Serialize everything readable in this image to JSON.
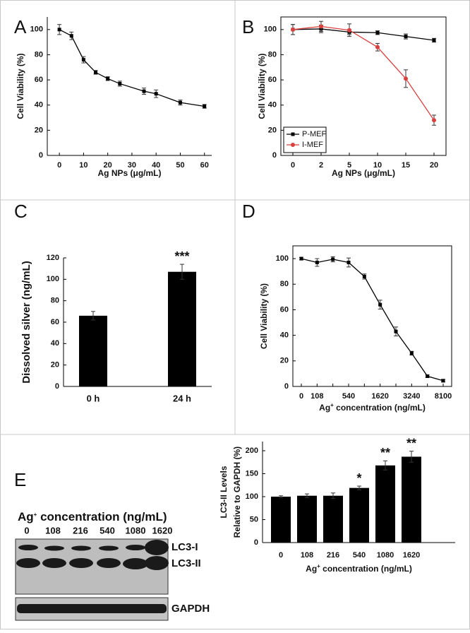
{
  "chart_data": [
    {
      "panel": "A",
      "type": "line",
      "ylabel": "Cell Viability (%)",
      "xlabel": "Ag NPs (μg/mL)",
      "x": [
        0,
        5,
        10,
        15,
        20,
        25,
        35,
        40,
        50,
        60
      ],
      "series": [
        {
          "color": "#000000",
          "marker": "square",
          "values": [
            100,
            95,
            76,
            66,
            61,
            57,
            51,
            49,
            42,
            39
          ],
          "errors": [
            4,
            3,
            2.5,
            1.5,
            1.5,
            2,
            2.5,
            3,
            2,
            1.5
          ]
        }
      ],
      "xlim": [
        -5,
        63
      ],
      "xticks": [
        0,
        10,
        20,
        30,
        40,
        50,
        60
      ],
      "ylim": [
        0,
        110
      ],
      "yticks": [
        0,
        20,
        40,
        60,
        80,
        100
      ],
      "frame": false
    },
    {
      "panel": "B",
      "type": "line",
      "ylabel": "Cell Viability (%)",
      "xlabel": "Ag NPs (μg/mL)",
      "categories": [
        "0",
        "2",
        "5",
        "10",
        "15",
        "20"
      ],
      "series": [
        {
          "name": "P-MEF",
          "color": "#000000",
          "marker": "square",
          "values": [
            100,
            100.5,
            98,
            97.5,
            94.5,
            91.5
          ],
          "errors": [
            4,
            3,
            2,
            1.5,
            2,
            1.5
          ]
        },
        {
          "name": "I-MEF",
          "color": "#d9413f",
          "marker": "circle",
          "values": [
            100,
            102.5,
            99.5,
            86,
            61,
            28
          ],
          "errors": [
            4,
            4,
            5,
            3,
            7,
            4
          ]
        }
      ],
      "ylim": [
        0,
        110
      ],
      "yticks": [
        0,
        20,
        40,
        60,
        80,
        100
      ],
      "frame": true,
      "legend": "lower left"
    },
    {
      "panel": "C",
      "type": "bar",
      "ylabel": "Dissolved silver (ng/mL)",
      "categories": [
        "0 h",
        "24 h"
      ],
      "values": [
        66,
        107
      ],
      "errors": [
        4,
        7
      ],
      "color": "#000000",
      "annotations": [
        {
          "index": 1,
          "text": "***"
        }
      ],
      "ylim": [
        0,
        120
      ],
      "yticks": [
        0,
        20,
        40,
        60,
        80,
        100,
        120
      ],
      "frame": false
    },
    {
      "panel": "D",
      "type": "line",
      "ylabel": "Cell Viability (%)",
      "xlabel": {
        "base": "Ag",
        "sup": "+",
        "rest": " concentration (ng/mL)"
      },
      "categories": [
        "0",
        "108",
        null,
        "540",
        null,
        "1620",
        null,
        "3240",
        null,
        "8100"
      ],
      "series": [
        {
          "color": "#000000",
          "marker": "square",
          "values": [
            100,
            97,
            99.5,
            97,
            86,
            64,
            43,
            26,
            8,
            4.5
          ],
          "errors": [
            1,
            3,
            2,
            3.5,
            2,
            3.5,
            3.5,
            1.5,
            1,
            1
          ]
        }
      ],
      "ylim": [
        0,
        110
      ],
      "yticks": [
        0,
        20,
        40,
        60,
        80,
        100
      ],
      "frame": true
    },
    {
      "panel": "E",
      "type": "bar",
      "ylabel": [
        "LC3-II Levels",
        "Relative to GAPDH (%)"
      ],
      "xlabel": {
        "base": "Ag",
        "sup": "+",
        "rest": " concentration (ng/mL)"
      },
      "categories": [
        "0",
        "108",
        "216",
        "540",
        "1080",
        "1620"
      ],
      "values": [
        100,
        102,
        102,
        119,
        168,
        187
      ],
      "errors": [
        2,
        4,
        6,
        4,
        10,
        12
      ],
      "color": "#000000",
      "annotations": [
        {
          "index": 3,
          "text": "*"
        },
        {
          "index": 4,
          "text": "**"
        },
        {
          "index": 5,
          "text": "**"
        }
      ],
      "ylim": [
        0,
        220
      ],
      "yticks": [
        0,
        50,
        100,
        150,
        200
      ],
      "frame": false
    }
  ],
  "blot": {
    "title": {
      "base": "Ag",
      "sup": "+",
      "rest": " concentration (ng/mL)"
    },
    "lanes": [
      "0",
      "108",
      "216",
      "540",
      "1080",
      "1620"
    ],
    "bands": [
      "LC3-I",
      "LC3-II"
    ],
    "loading": "GAPDH"
  }
}
